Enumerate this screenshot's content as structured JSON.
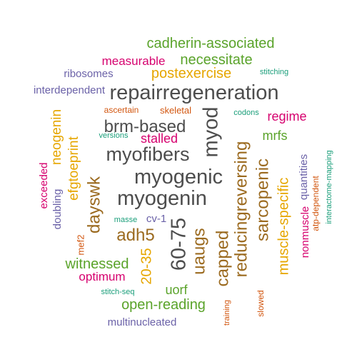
{
  "colors": {
    "gray": "#4d4d4d",
    "green": "#5aa32a",
    "magenta": "#d6006e",
    "gold": "#e6a600",
    "purple": "#6b62a8",
    "brown": "#9b6a1f",
    "orange": "#d2560f",
    "teal": "#1a9e7a"
  },
  "words": [
    {
      "text": "cadherin-associated",
      "color": "green"
    },
    {
      "text": "measurable",
      "color": "magenta"
    },
    {
      "text": "necessitate",
      "color": "green"
    },
    {
      "text": "ribosomes",
      "color": "purple"
    },
    {
      "text": "postexercise",
      "color": "gold"
    },
    {
      "text": "stitching",
      "color": "teal"
    },
    {
      "text": "interdependent",
      "color": "purple"
    },
    {
      "text": "repairregeneration",
      "color": "gray"
    },
    {
      "text": "ascertain",
      "color": "orange"
    },
    {
      "text": "skeletal",
      "color": "orange"
    },
    {
      "text": "codons",
      "color": "teal"
    },
    {
      "text": "regime",
      "color": "magenta"
    },
    {
      "text": "brm-based",
      "color": "gray"
    },
    {
      "text": "versions",
      "color": "teal"
    },
    {
      "text": "stalled",
      "color": "magenta"
    },
    {
      "text": "mrfs",
      "color": "green"
    },
    {
      "text": "myofibers",
      "color": "gray"
    },
    {
      "text": "myod",
      "color": "gray"
    },
    {
      "text": "myogenic",
      "color": "gray"
    },
    {
      "text": "myogenin",
      "color": "gray"
    },
    {
      "text": "neogenin",
      "color": "gold"
    },
    {
      "text": "efgtoeprint",
      "color": "gold"
    },
    {
      "text": "exceeded",
      "color": "magenta"
    },
    {
      "text": "doubling",
      "color": "purple"
    },
    {
      "text": "dayswk",
      "color": "brown"
    },
    {
      "text": "reducingreversing",
      "color": "brown"
    },
    {
      "text": "sarcopenic",
      "color": "brown"
    },
    {
      "text": "muscle-specific",
      "color": "gold"
    },
    {
      "text": "quantities",
      "color": "purple"
    },
    {
      "text": "nonmuscle",
      "color": "magenta"
    },
    {
      "text": "atp-dependent",
      "color": "orange"
    },
    {
      "text": "interactome-mapping",
      "color": "teal"
    },
    {
      "text": "masse",
      "color": "teal"
    },
    {
      "text": "cv-1",
      "color": "purple"
    },
    {
      "text": "adh5",
      "color": "brown"
    },
    {
      "text": "60-75",
      "color": "gray"
    },
    {
      "text": "uaugs",
      "color": "brown"
    },
    {
      "text": "capped",
      "color": "brown"
    },
    {
      "text": "mef2",
      "color": "orange"
    },
    {
      "text": "witnessed",
      "color": "green"
    },
    {
      "text": "20-35",
      "color": "gold"
    },
    {
      "text": "optimum",
      "color": "magenta"
    },
    {
      "text": "uorf",
      "color": "green"
    },
    {
      "text": "stitch-seq",
      "color": "teal"
    },
    {
      "text": "open-reading",
      "color": "green"
    },
    {
      "text": "training",
      "color": "orange"
    },
    {
      "text": "slowed",
      "color": "orange"
    },
    {
      "text": "multinucleated",
      "color": "purple"
    }
  ]
}
